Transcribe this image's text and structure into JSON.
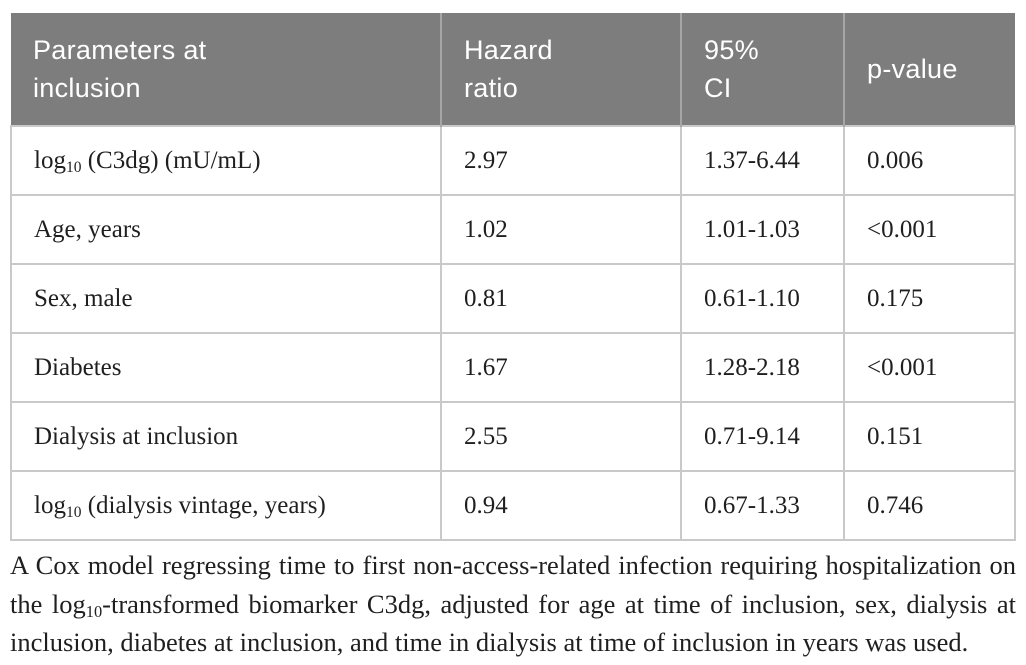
{
  "table": {
    "headers": [
      "Parameters at inclusion",
      "Hazard ratio",
      "95% CI",
      "p-value"
    ],
    "rows": [
      {
        "param_base": "log",
        "param_sub": "10",
        "param_rest": " (C3dg) (mU/mL)",
        "hazard_ratio": "2.97",
        "ci_95": "1.37-6.44",
        "p_value": "0.006"
      },
      {
        "param_base": "Age, years",
        "param_sub": "",
        "param_rest": "",
        "hazard_ratio": "1.02",
        "ci_95": "1.01-1.03",
        "p_value": "<0.001"
      },
      {
        "param_base": "Sex, male",
        "param_sub": "",
        "param_rest": "",
        "hazard_ratio": "0.81",
        "ci_95": "0.61-1.10",
        "p_value": "0.175"
      },
      {
        "param_base": "Diabetes",
        "param_sub": "",
        "param_rest": "",
        "hazard_ratio": "1.67",
        "ci_95": "1.28-2.18",
        "p_value": "<0.001"
      },
      {
        "param_base": "Dialysis at inclusion",
        "param_sub": "",
        "param_rest": "",
        "hazard_ratio": "2.55",
        "ci_95": "0.71-9.14",
        "p_value": "0.151"
      },
      {
        "param_base": "log",
        "param_sub": "10",
        "param_rest": " (dialysis vintage, years)",
        "hazard_ratio": "0.94",
        "ci_95": "0.67-1.33",
        "p_value": "0.746"
      }
    ]
  },
  "footnote": {
    "pre": "A Cox model regressing time to first non-access-related infection requiring hospitalization on the log",
    "sub": "10",
    "post": "-transformed biomarker C3dg, adjusted for age at time of inclusion, sex, dialysis at inclusion, diabetes at inclusion, and time in dialysis at time of inclusion in years was used."
  },
  "colors": {
    "header_bg": "#7d7d7d",
    "header_text": "#ffffff",
    "header_separator": "#a6a6a6",
    "body_border": "#c9c9c9",
    "body_text": "#1f1f1f"
  }
}
